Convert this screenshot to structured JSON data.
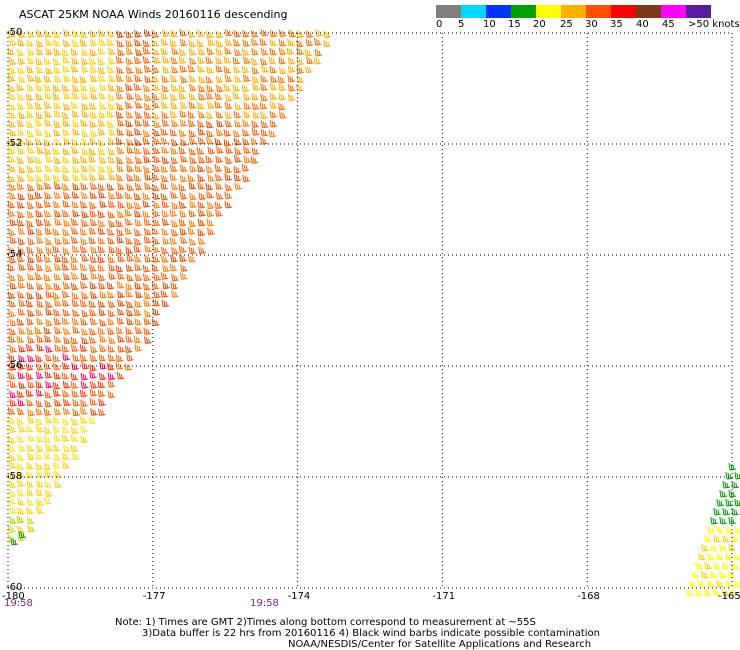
{
  "header": {
    "title": "ASCAT 25KM NOAA Winds 20160116 descending"
  },
  "legend": {
    "labels": [
      "0",
      "5",
      "10",
      "15",
      "20",
      "25",
      "30",
      "35",
      "40",
      "45",
      ">50 knots"
    ],
    "colors": [
      "#7f7f7f",
      "#00d8ff",
      "#0033ff",
      "#00a000",
      "#ffff00",
      "#ffb000",
      "#ff5000",
      "#ff0000",
      "#7a3a1a",
      "#ff00ff",
      "#5a1aa0"
    ]
  },
  "map": {
    "projection": "cylindrical",
    "lat_range": [
      -60,
      -50
    ],
    "lon_range": [
      -180,
      -165
    ],
    "gridlines": "dotted",
    "lat_labels": [
      "-50",
      "-52",
      "-54",
      "-56",
      "-58",
      "-60"
    ],
    "lon_labels": [
      "-180",
      "-177",
      "-174",
      "-171",
      "-168",
      "-165"
    ],
    "time_labels": [
      "19:58",
      "19:58"
    ],
    "swath_colors_dominant": [
      "#ff5000",
      "#ffb000",
      "#ffff00",
      "#ff0000",
      "#00a000"
    ]
  },
  "notes": {
    "line1": "Note: 1) Times are GMT 2)Times along bottom correspond to measurement at ~55S",
    "line2": "3)Data buffer is 22 hrs from 20160116 4) Black wind barbs indicate possible contamination",
    "line3": "NOAA/NESDIS/Center for Satellite Applications and Research"
  }
}
